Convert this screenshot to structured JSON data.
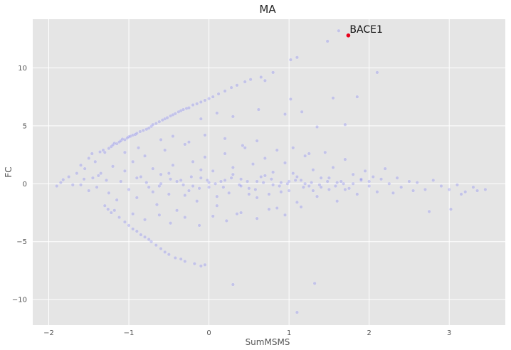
{
  "chart_data": {
    "type": "scatter",
    "title": "MA",
    "xlabel": "SumMSMS",
    "ylabel": "FC",
    "xlim": [
      -2.2,
      3.7
    ],
    "ylim": [
      -12.2,
      14.2
    ],
    "xticks": [
      -2,
      -1,
      0,
      1,
      2,
      3
    ],
    "yticks": [
      -10,
      -5,
      0,
      5,
      10
    ],
    "grid": true,
    "background": "#e5e5e5",
    "point_color": "#6b6bf0",
    "point_alpha": 0.28,
    "highlight_color": "#e8001a",
    "highlight": {
      "label": "BACE1",
      "x": 1.74,
      "y": 12.8
    },
    "series": [
      {
        "values": [
          [
            -1.9,
            -0.2
          ],
          [
            -1.85,
            0.1
          ],
          [
            -1.82,
            0.35
          ],
          [
            -1.75,
            0.6
          ],
          [
            -1.7,
            -0.1
          ],
          [
            -1.65,
            0.9
          ],
          [
            -1.6,
            1.6
          ],
          [
            -1.55,
            1.3
          ],
          [
            -1.5,
            2.2
          ],
          [
            -1.46,
            2.6
          ],
          [
            -1.42,
            1.9
          ],
          [
            -1.38,
            0.7
          ],
          [
            -1.36,
            2.75
          ],
          [
            -1.32,
            2.9
          ],
          [
            -1.3,
            2.7
          ],
          [
            -1.28,
            0.3
          ],
          [
            -1.25,
            3.05
          ],
          [
            -1.22,
            3.2
          ],
          [
            -1.2,
            3.35
          ],
          [
            -1.18,
            3.5
          ],
          [
            -1.15,
            3.45
          ],
          [
            -1.12,
            3.6
          ],
          [
            -1.1,
            3.7
          ],
          [
            -1.08,
            3.85
          ],
          [
            -1.05,
            3.8
          ],
          [
            -1.02,
            3.95
          ],
          [
            -1.0,
            4.05
          ],
          [
            -0.98,
            4.1
          ],
          [
            -0.95,
            4.2
          ],
          [
            -0.92,
            4.25
          ],
          [
            -0.9,
            4.35
          ],
          [
            -0.86,
            4.5
          ],
          [
            -0.82,
            4.6
          ],
          [
            -0.78,
            4.7
          ],
          [
            -0.75,
            4.8
          ],
          [
            -0.72,
            4.95
          ],
          [
            -0.7,
            5.1
          ],
          [
            -0.66,
            5.2
          ],
          [
            -0.62,
            5.35
          ],
          [
            -0.58,
            5.5
          ],
          [
            -0.55,
            5.6
          ],
          [
            -0.52,
            5.7
          ],
          [
            -0.48,
            5.85
          ],
          [
            -0.45,
            5.95
          ],
          [
            -0.42,
            6.05
          ],
          [
            -0.38,
            6.2
          ],
          [
            -0.35,
            6.3
          ],
          [
            -0.32,
            6.4
          ],
          [
            -0.28,
            6.5
          ],
          [
            -0.25,
            6.55
          ],
          [
            -0.2,
            6.8
          ],
          [
            -0.15,
            6.9
          ],
          [
            -0.1,
            7.05
          ],
          [
            -0.05,
            7.2
          ],
          [
            0.0,
            7.35
          ],
          [
            0.05,
            7.5
          ],
          [
            0.12,
            7.75
          ],
          [
            0.2,
            8.0
          ],
          [
            0.28,
            8.3
          ],
          [
            0.35,
            8.5
          ],
          [
            0.45,
            8.8
          ],
          [
            0.52,
            9.0
          ],
          [
            0.65,
            9.2
          ],
          [
            0.7,
            8.9
          ],
          [
            0.8,
            9.6
          ],
          [
            1.02,
            10.7
          ],
          [
            1.1,
            10.9
          ],
          [
            1.48,
            12.3
          ],
          [
            1.62,
            13.2
          ],
          [
            2.1,
            9.6
          ],
          [
            1.85,
            7.5
          ],
          [
            1.55,
            7.4
          ],
          [
            1.7,
            5.1
          ],
          [
            1.02,
            7.3
          ],
          [
            1.16,
            6.2
          ],
          [
            0.95,
            6.0
          ],
          [
            0.62,
            6.4
          ],
          [
            0.3,
            5.8
          ],
          [
            0.1,
            6.1
          ],
          [
            -0.1,
            5.6
          ],
          [
            1.35,
            4.9
          ],
          [
            -1.3,
            -1.9
          ],
          [
            -1.26,
            -2.2
          ],
          [
            -1.22,
            -2.5
          ],
          [
            -1.18,
            -2.3
          ],
          [
            -1.12,
            -2.9
          ],
          [
            -1.05,
            -3.3
          ],
          [
            -1.0,
            -3.6
          ],
          [
            -0.95,
            -3.9
          ],
          [
            -0.9,
            -4.1
          ],
          [
            -0.85,
            -4.4
          ],
          [
            -0.8,
            -4.6
          ],
          [
            -0.75,
            -4.8
          ],
          [
            -0.72,
            -5.0
          ],
          [
            -0.66,
            -5.3
          ],
          [
            -0.6,
            -5.6
          ],
          [
            -0.55,
            -5.9
          ],
          [
            -0.5,
            -6.1
          ],
          [
            -0.42,
            -6.4
          ],
          [
            -0.35,
            -6.5
          ],
          [
            -0.3,
            -6.7
          ],
          [
            -0.18,
            -6.9
          ],
          [
            -0.1,
            -7.1
          ],
          [
            -0.05,
            -7.0
          ],
          [
            0.3,
            -8.7
          ],
          [
            1.1,
            -11.1
          ],
          [
            1.32,
            -8.6
          ],
          [
            -1.4,
            -0.3
          ],
          [
            -1.45,
            0.5
          ],
          [
            -1.5,
            -0.6
          ],
          [
            -1.56,
            0.4
          ],
          [
            -1.6,
            -0.1
          ],
          [
            -1.35,
            0.9
          ],
          [
            -1.25,
            -0.8
          ],
          [
            -1.2,
            1.5
          ],
          [
            -1.15,
            -1.4
          ],
          [
            -1.1,
            0.2
          ],
          [
            -1.05,
            1.1
          ],
          [
            -1.0,
            -0.5
          ],
          [
            -0.95,
            1.9
          ],
          [
            -0.9,
            -1.2
          ],
          [
            -0.85,
            0.6
          ],
          [
            -0.8,
            2.4
          ],
          [
            -0.75,
            -0.3
          ],
          [
            -0.7,
            1.3
          ],
          [
            -0.65,
            -1.8
          ],
          [
            -0.6,
            0.8
          ],
          [
            -0.55,
            2.9
          ],
          [
            -0.5,
            -0.9
          ],
          [
            -0.45,
            1.6
          ],
          [
            -0.4,
            -2.3
          ],
          [
            -0.35,
            0.3
          ],
          [
            -0.3,
            3.4
          ],
          [
            -0.25,
            -0.6
          ],
          [
            -0.2,
            1.9
          ],
          [
            -0.15,
            -1.5
          ],
          [
            -0.1,
            0.5
          ],
          [
            -0.05,
            2.3
          ],
          [
            0.0,
            -0.3
          ],
          [
            0.05,
            1.1
          ],
          [
            0.1,
            -1.9
          ],
          [
            0.15,
            0.2
          ],
          [
            0.2,
            2.6
          ],
          [
            0.25,
            -0.8
          ],
          [
            0.3,
            1.4
          ],
          [
            0.35,
            -2.6
          ],
          [
            0.4,
            0.4
          ],
          [
            0.45,
            3.1
          ],
          [
            0.5,
            -0.4
          ],
          [
            0.55,
            1.7
          ],
          [
            0.6,
            -1.2
          ],
          [
            0.65,
            0.6
          ],
          [
            0.7,
            2.2
          ],
          [
            0.75,
            -0.9
          ],
          [
            0.8,
            1.0
          ],
          [
            0.85,
            -2.1
          ],
          [
            0.9,
            0.1
          ],
          [
            0.95,
            1.8
          ],
          [
            1.0,
            -0.6
          ],
          [
            1.05,
            0.9
          ],
          [
            1.1,
            -1.6
          ],
          [
            1.15,
            0.3
          ],
          [
            1.2,
            2.4
          ],
          [
            1.25,
            -0.2
          ],
          [
            1.3,
            1.2
          ],
          [
            1.35,
            -1.1
          ],
          [
            1.4,
            0.5
          ],
          [
            1.45,
            2.7
          ],
          [
            1.5,
            -0.5
          ],
          [
            1.55,
            1.4
          ],
          [
            1.6,
            -1.5
          ],
          [
            1.65,
            0.2
          ],
          [
            1.7,
            2.1
          ],
          [
            1.75,
            -0.4
          ],
          [
            1.8,
            0.8
          ],
          [
            1.85,
            -0.9
          ],
          [
            1.9,
            0.3
          ],
          [
            1.95,
            1.1
          ],
          [
            2.0,
            -0.2
          ],
          [
            2.05,
            0.6
          ],
          [
            2.1,
            -0.7
          ],
          [
            2.15,
            0.4
          ],
          [
            2.2,
            1.3
          ],
          [
            2.25,
            0.0
          ],
          [
            2.3,
            -0.8
          ],
          [
            2.35,
            0.5
          ],
          [
            2.4,
            -0.3
          ],
          [
            2.5,
            0.2
          ],
          [
            2.55,
            -0.6
          ],
          [
            2.6,
            0.1
          ],
          [
            2.7,
            -0.5
          ],
          [
            2.75,
            -2.4
          ],
          [
            2.8,
            0.3
          ],
          [
            2.9,
            -0.2
          ],
          [
            3.0,
            -0.5
          ],
          [
            3.02,
            -2.2
          ],
          [
            3.1,
            -0.1
          ],
          [
            3.15,
            -0.9
          ],
          [
            3.2,
            -0.7
          ],
          [
            3.3,
            -0.3
          ],
          [
            3.35,
            -0.6
          ],
          [
            3.45,
            -0.5
          ],
          [
            -0.78,
            0.1
          ],
          [
            -0.62,
            -0.2
          ],
          [
            -0.48,
            0.4
          ],
          [
            -0.32,
            -0.1
          ],
          [
            -0.22,
            0.6
          ],
          [
            -0.12,
            -0.4
          ],
          [
            -0.02,
            0.3
          ],
          [
            0.08,
            0.0
          ],
          [
            0.18,
            -0.3
          ],
          [
            0.28,
            0.5
          ],
          [
            0.38,
            -0.1
          ],
          [
            0.48,
            0.2
          ],
          [
            0.58,
            -0.5
          ],
          [
            0.68,
            0.1
          ],
          [
            0.78,
            0.4
          ],
          [
            0.88,
            -0.2
          ],
          [
            0.98,
            0.0
          ],
          [
            1.08,
            0.3
          ],
          [
            1.18,
            -0.3
          ],
          [
            1.28,
            0.1
          ],
          [
            1.38,
            -0.1
          ],
          [
            1.48,
            0.2
          ],
          [
            1.58,
            -0.2
          ],
          [
            1.68,
            0.0
          ],
          [
            -0.9,
            0.5
          ],
          [
            -0.7,
            -0.7
          ],
          [
            -0.5,
            0.9
          ],
          [
            -0.3,
            -1.0
          ],
          [
            -0.1,
            1.2
          ],
          [
            0.1,
            -1.1
          ],
          [
            0.3,
            0.8
          ],
          [
            0.5,
            -0.9
          ],
          [
            0.7,
            0.7
          ],
          [
            0.9,
            -0.7
          ],
          [
            1.1,
            0.6
          ],
          [
            1.3,
            -0.6
          ],
          [
            1.5,
            0.5
          ],
          [
            1.7,
            -0.5
          ],
          [
            1.9,
            0.4
          ],
          [
            -1.05,
            2.7
          ],
          [
            -0.88,
            3.1
          ],
          [
            -0.6,
            3.8
          ],
          [
            -0.45,
            4.1
          ],
          [
            -0.25,
            3.6
          ],
          [
            -0.05,
            4.2
          ],
          [
            0.2,
            3.9
          ],
          [
            0.42,
            3.3
          ],
          [
            0.6,
            3.7
          ],
          [
            0.85,
            2.9
          ],
          [
            1.05,
            3.1
          ],
          [
            1.25,
            2.6
          ],
          [
            -0.95,
            -2.6
          ],
          [
            -0.8,
            -3.1
          ],
          [
            -0.62,
            -2.7
          ],
          [
            -0.48,
            -3.4
          ],
          [
            -0.3,
            -2.9
          ],
          [
            -0.12,
            -3.6
          ],
          [
            0.05,
            -2.8
          ],
          [
            0.22,
            -3.2
          ],
          [
            0.4,
            -2.5
          ],
          [
            0.6,
            -3.0
          ],
          [
            0.75,
            -2.2
          ],
          [
            0.95,
            -2.7
          ],
          [
            1.15,
            -2.0
          ],
          [
            -0.6,
            0.0
          ],
          [
            -0.4,
            0.2
          ],
          [
            -0.2,
            -0.2
          ],
          [
            0.0,
            0.1
          ],
          [
            0.2,
            0.3
          ],
          [
            0.4,
            -0.2
          ],
          [
            0.6,
            0.2
          ],
          [
            0.8,
            -0.1
          ],
          [
            1.0,
            0.2
          ],
          [
            1.2,
            0.0
          ],
          [
            1.4,
            -0.3
          ],
          [
            1.6,
            0.1
          ],
          [
            1.8,
            0.0
          ],
          [
            2.0,
            0.2
          ]
        ]
      }
    ]
  }
}
